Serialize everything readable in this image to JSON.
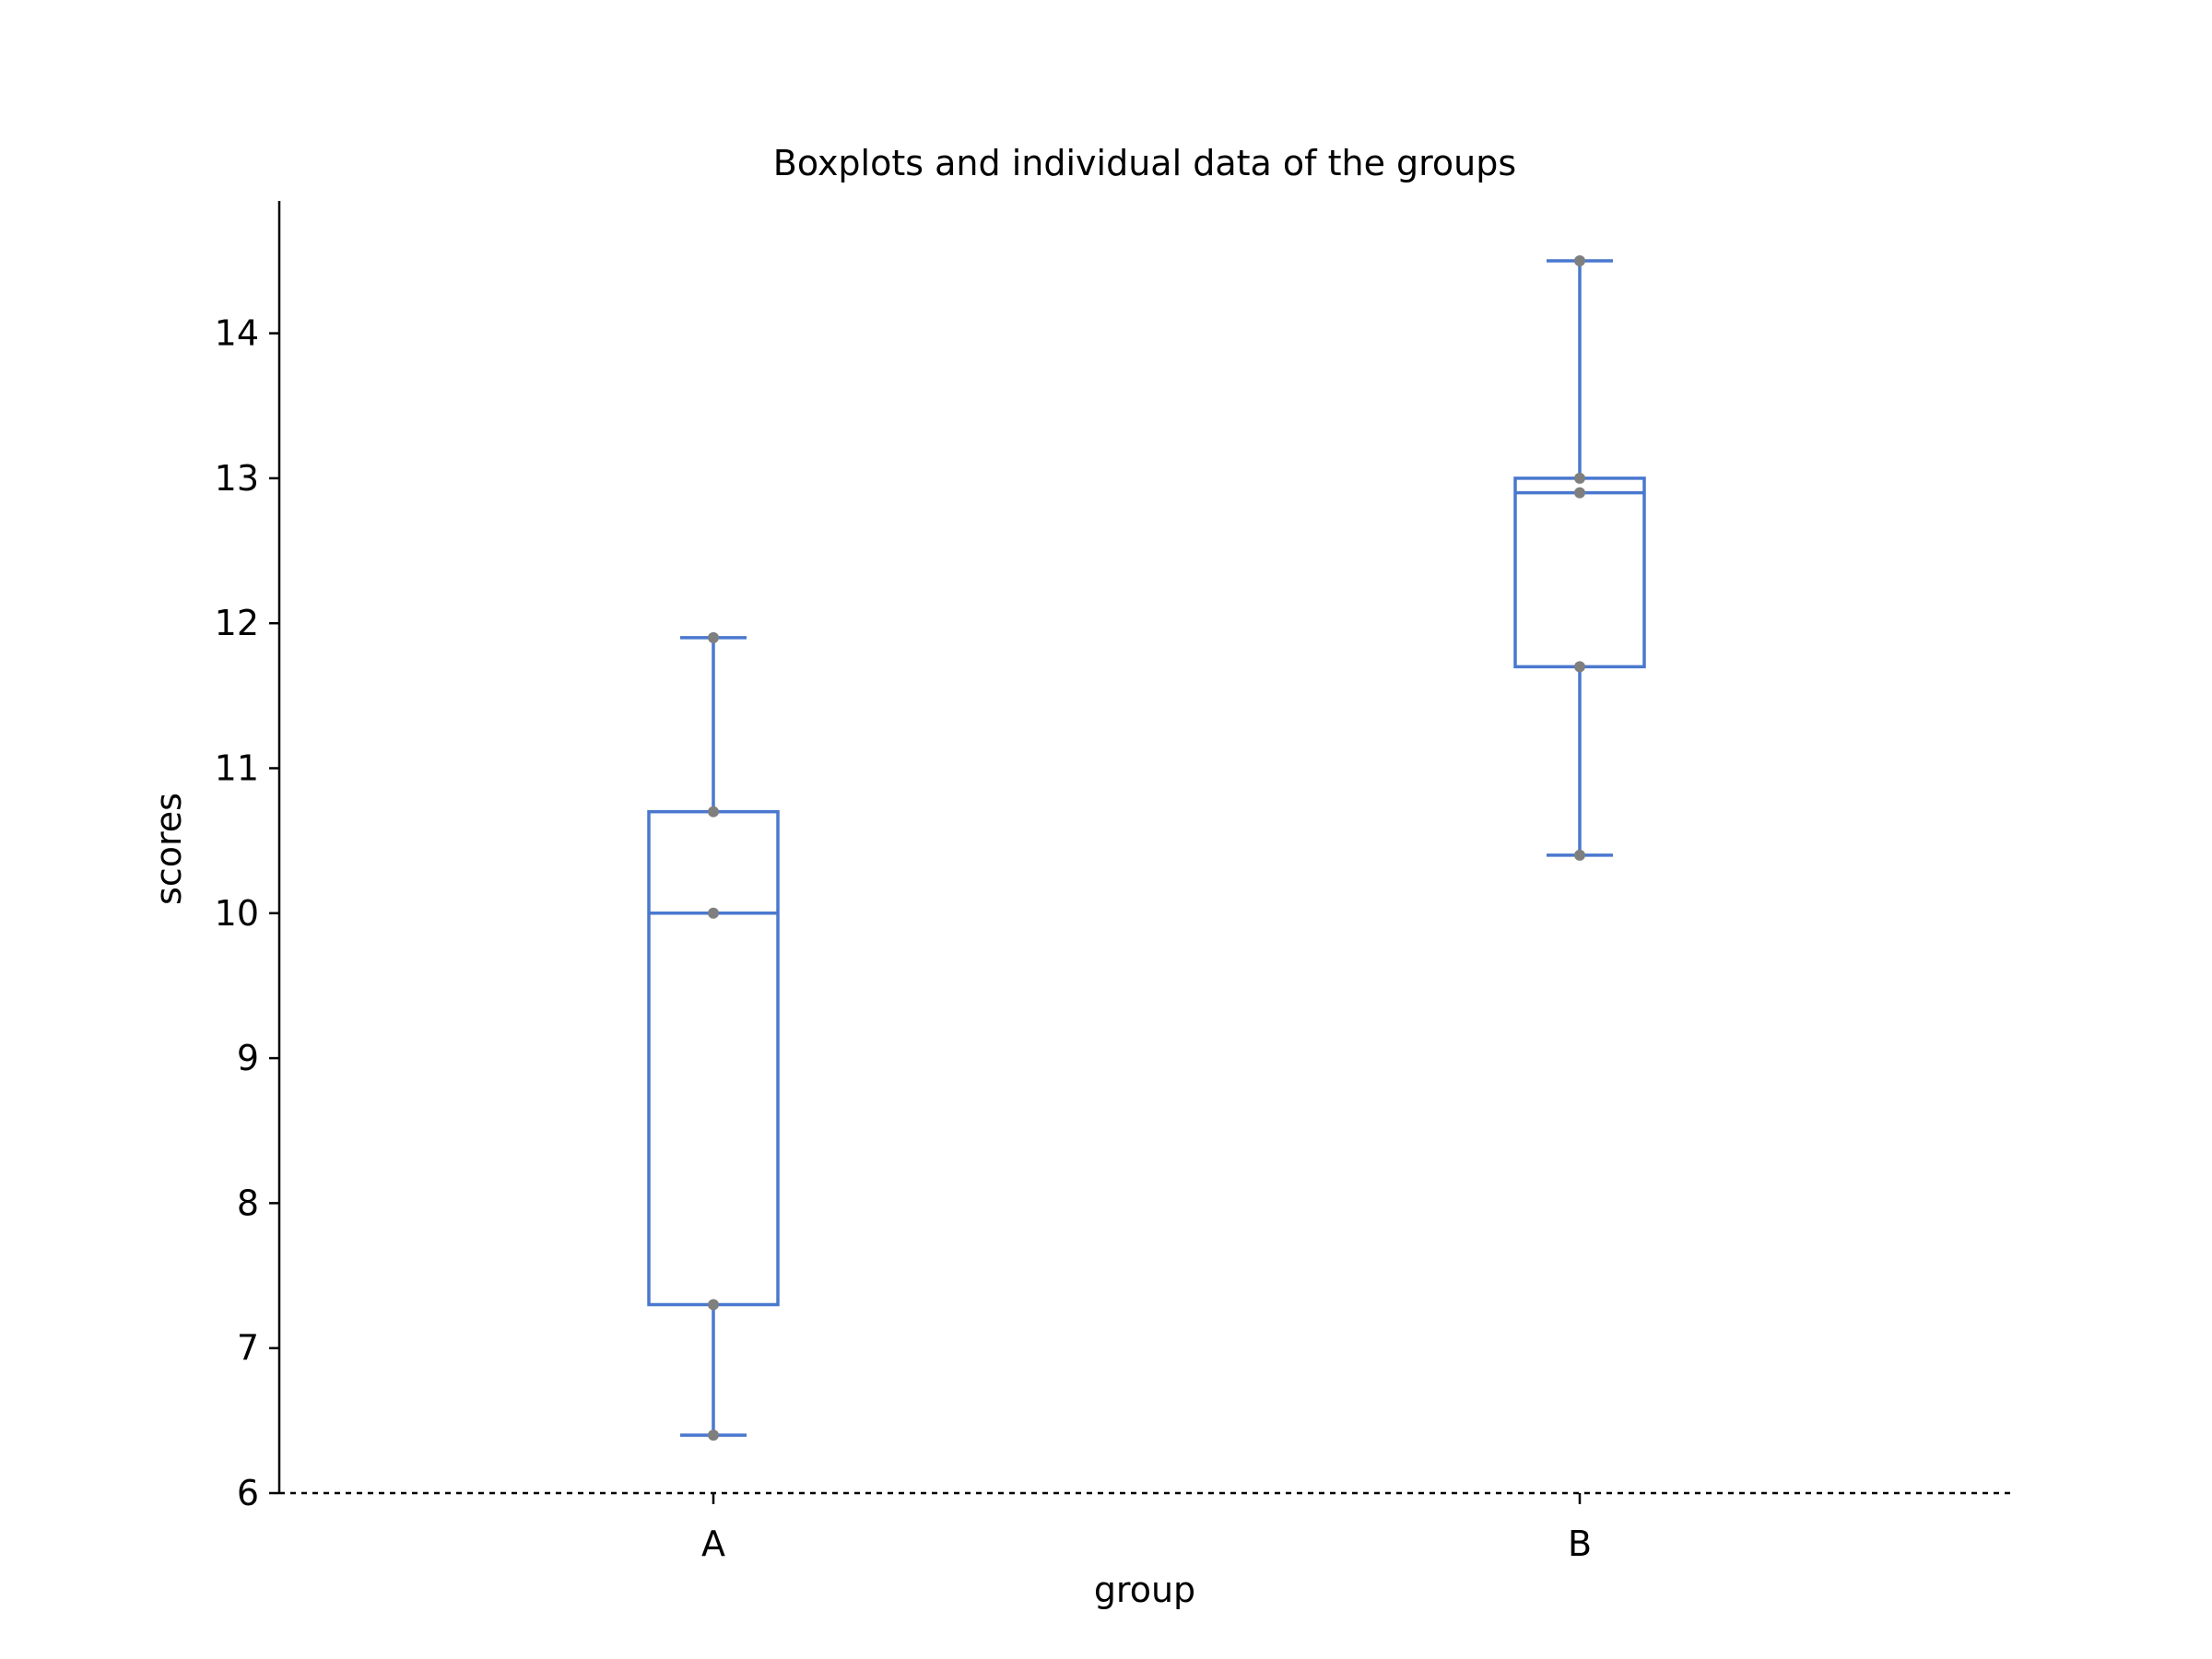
{
  "chart_data": {
    "type": "box",
    "title": "Boxplots and individual data of the groups",
    "xlabel": "group",
    "ylabel": "scores",
    "categories": [
      "A",
      "B"
    ],
    "ylim": [
      6,
      14.9
    ],
    "yticks": [
      6,
      7,
      8,
      9,
      10,
      11,
      12,
      13,
      14
    ],
    "grid": false,
    "legend": null,
    "baseline": {
      "value": 6,
      "style": "dotted"
    },
    "series": [
      {
        "name": "A",
        "points": [
          6.4,
          7.3,
          10.0,
          10.7,
          11.9
        ],
        "whisker_low": 6.4,
        "q1": 7.3,
        "median": 10.0,
        "q3": 10.7,
        "whisker_high": 11.9
      },
      {
        "name": "B",
        "points": [
          10.4,
          11.7,
          12.9,
          13.0,
          14.5
        ],
        "whisker_low": 10.4,
        "q1": 11.7,
        "median": 12.9,
        "q3": 13.0,
        "whisker_high": 14.5
      }
    ],
    "colors": {
      "box_line": "#4a78cf",
      "points": "#7f7f7f",
      "axis": "#000000"
    }
  }
}
